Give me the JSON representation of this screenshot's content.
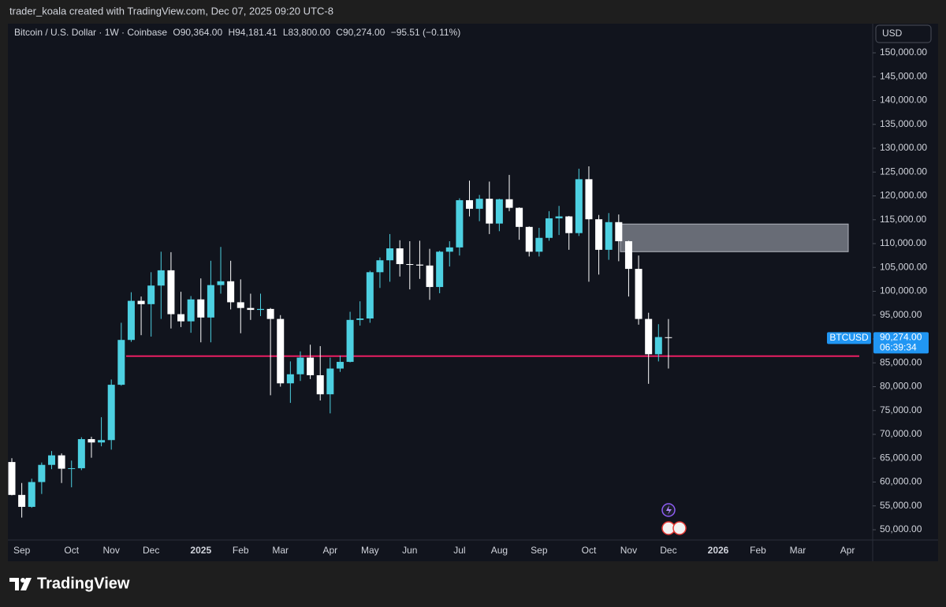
{
  "header": {
    "credit": "trader_koala created with TradingView.com, Dec 07, 2025 09:20 UTC-8",
    "logo": "TradingView"
  },
  "chart_data": {
    "type": "candlestick",
    "legend": {
      "symbol": "Bitcoin / U.S. Dollar · 1W · Coinbase",
      "open": "O90,364.00",
      "high": "H94,181.41",
      "low": "L83,800.00",
      "close": "C90,274.00",
      "change": "−95.51 (−0.11%)"
    },
    "currency": "USD",
    "categories": [
      null,
      "Sep",
      null,
      null,
      null,
      null,
      "Oct",
      null,
      null,
      null,
      "Nov",
      null,
      null,
      null,
      "Dec",
      null,
      null,
      null,
      null,
      "2025",
      null,
      null,
      null,
      "Feb",
      null,
      null,
      null,
      "Mar",
      null,
      null,
      null,
      null,
      "Apr",
      null,
      null,
      null,
      "May",
      null,
      null,
      null,
      "Jun",
      null,
      null,
      null,
      null,
      "Jul",
      null,
      null,
      null,
      "Aug",
      null,
      null,
      null,
      "Sep",
      null,
      null,
      null,
      null,
      "Oct",
      null,
      null,
      null,
      "Nov",
      null,
      null,
      null,
      "Dec",
      null,
      null,
      null,
      null,
      "2026",
      null,
      null,
      null,
      "Feb",
      null,
      null,
      null,
      "Mar",
      null,
      null,
      null,
      null,
      "Apr",
      null,
      null
    ],
    "open": [
      64200,
      57300,
      54800,
      60000,
      63600,
      65600,
      62800,
      62900,
      69000,
      68300,
      68800,
      80400,
      89800,
      98000,
      97300,
      101200,
      104400,
      95200,
      93700,
      98300,
      94500,
      101300,
      102100,
      97700,
      96500,
      96100,
      96300,
      94200,
      80700,
      82600,
      86100,
      82400,
      78400,
      83800,
      85200,
      94000,
      94300,
      104000,
      106500,
      109000,
      105700,
      105600,
      105400,
      100900,
      108300,
      109200,
      119100,
      117300,
      119400,
      114200,
      119300,
      117500,
      113500,
      108300,
      111200,
      115300,
      115700,
      112200,
      123500,
      115100,
      108700,
      114500,
      110500,
      104700,
      94200,
      86800,
      90364,
      null,
      null,
      null,
      null,
      null,
      null,
      null,
      null,
      null,
      null,
      null,
      null,
      null,
      null,
      null,
      null,
      null,
      null,
      null,
      null
    ],
    "high": [
      65000,
      59800,
      60700,
      64100,
      66500,
      66000,
      64500,
      69400,
      69500,
      73600,
      81500,
      93400,
      99800,
      98900,
      104000,
      108300,
      108200,
      99900,
      99000,
      102700,
      106400,
      109300,
      106400,
      102500,
      99500,
      99500,
      96500,
      95000,
      85300,
      87400,
      88800,
      88500,
      86100,
      86500,
      95700,
      97900,
      104300,
      107100,
      112000,
      110700,
      110500,
      110600,
      108900,
      108500,
      110500,
      119500,
      123200,
      120200,
      123000,
      119400,
      124400,
      117600,
      113600,
      113300,
      116800,
      117900,
      115800,
      125700,
      126200,
      116000,
      116400,
      116100,
      110600,
      107500,
      95500,
      93100,
      94181.41,
      null,
      null,
      null,
      null,
      null,
      null,
      null,
      null,
      null,
      null,
      null,
      null,
      null,
      null,
      null,
      null,
      null,
      null,
      null,
      null
    ],
    "low": [
      57200,
      52550,
      54600,
      57500,
      62700,
      59800,
      58900,
      62500,
      65100,
      67500,
      66800,
      80200,
      89400,
      90800,
      90500,
      94200,
      92200,
      92500,
      91300,
      89300,
      89300,
      99500,
      96200,
      91200,
      94000,
      94800,
      78200,
      80000,
      76600,
      81200,
      81600,
      77100,
      74400,
      83100,
      85100,
      92800,
      93400,
      100700,
      102000,
      103100,
      100400,
      102600,
      98200,
      99600,
      105200,
      107500,
      115700,
      114700,
      112000,
      112600,
      116800,
      110800,
      107300,
      107300,
      110600,
      111800,
      108700,
      111600,
      102000,
      103500,
      106600,
      106300,
      98900,
      93000,
      80600,
      85300,
      83800,
      null,
      null,
      null,
      null,
      null,
      null,
      null,
      null,
      null,
      null,
      null,
      null,
      null,
      null,
      null,
      null,
      null,
      null,
      null,
      null
    ],
    "close": [
      57300,
      54800,
      60000,
      63600,
      65600,
      62800,
      62900,
      69000,
      68300,
      68800,
      80400,
      89800,
      98000,
      97300,
      101200,
      104400,
      95200,
      93700,
      98300,
      94500,
      101300,
      102100,
      97700,
      96500,
      96100,
      96300,
      94200,
      80700,
      82600,
      86100,
      82400,
      78400,
      83800,
      85200,
      94000,
      94300,
      104000,
      106500,
      109000,
      105700,
      105600,
      105400,
      100900,
      108300,
      109200,
      119100,
      117300,
      119400,
      114200,
      119300,
      117500,
      113500,
      108300,
      111200,
      115300,
      115700,
      112200,
      123500,
      115100,
      108700,
      114500,
      110500,
      104700,
      94200,
      86800,
      90400,
      90274,
      null,
      null,
      null,
      null,
      null,
      null,
      null,
      null,
      null,
      null,
      null,
      null,
      null,
      null,
      null,
      null,
      null,
      null,
      null,
      null
    ],
    "up_color": "#4dd0e1",
    "down_color": "#ffffff",
    "ylim": [
      47850,
      156120
    ],
    "yticks": [
      {
        "value": 50000,
        "label": "50,000.00"
      },
      {
        "value": 55000,
        "label": "55,000.00"
      },
      {
        "value": 60000,
        "label": "60,000.00"
      },
      {
        "value": 65000,
        "label": "65,000.00"
      },
      {
        "value": 70000,
        "label": "70,000.00"
      },
      {
        "value": 75000,
        "label": "75,000.00"
      },
      {
        "value": 80000,
        "label": "80,000.00"
      },
      {
        "value": 85000,
        "label": "85,000.00"
      },
      {
        "value": 90000,
        "label": "90,000.00"
      },
      {
        "value": 95000,
        "label": "95,000.00"
      },
      {
        "value": 100000,
        "label": "100,000.00"
      },
      {
        "value": 105000,
        "label": "105,000.00"
      },
      {
        "value": 110000,
        "label": "110,000.00"
      },
      {
        "value": 115000,
        "label": "115,000.00"
      },
      {
        "value": 120000,
        "label": "120,000.00"
      },
      {
        "value": 125000,
        "label": "125,000.00"
      },
      {
        "value": 130000,
        "label": "130,000.00"
      },
      {
        "value": 135000,
        "label": "135,000.00"
      },
      {
        "value": 140000,
        "label": "140,000.00"
      },
      {
        "value": 145000,
        "label": "145,000.00"
      },
      {
        "value": 150000,
        "label": "150,000.00"
      }
    ],
    "grid": false,
    "zone": {
      "low": 108300,
      "high": 114100,
      "color": "#787b86"
    },
    "level": {
      "value": 86400,
      "color": "#e91e63"
    },
    "price_tag": {
      "symbol": "BTCUSD",
      "value": 90274,
      "value_label": "90,274.00",
      "countdown": "06:39:34",
      "color": "#2196f3"
    }
  }
}
